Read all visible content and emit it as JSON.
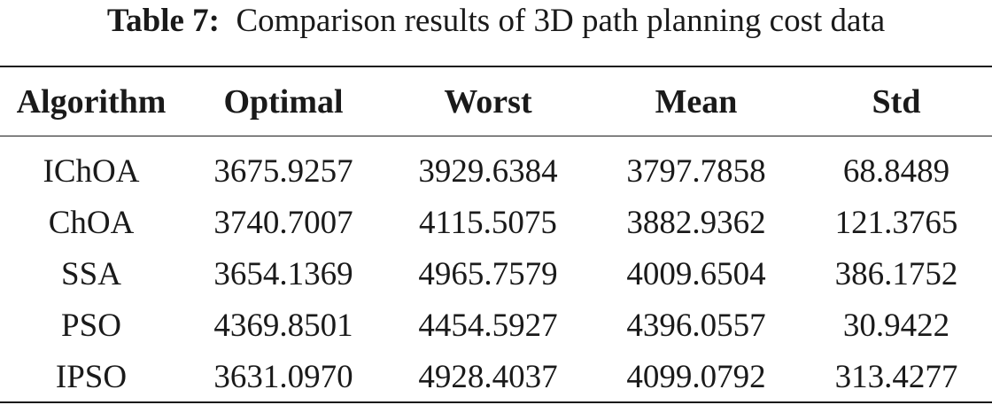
{
  "caption": {
    "label": "Table 7:",
    "text": "Comparison results of 3D path planning cost data"
  },
  "table": {
    "headers": [
      "Algorithm",
      "Optimal",
      "Worst",
      "Mean",
      "Std"
    ],
    "rows": [
      [
        "IChOA",
        "3675.9257",
        "3929.6384",
        "3797.7858",
        "68.8489"
      ],
      [
        "ChOA",
        "3740.7007",
        "4115.5075",
        "3882.9362",
        "121.3765"
      ],
      [
        "SSA",
        "3654.1369",
        "4965.7579",
        "4009.6504",
        "386.1752"
      ],
      [
        "PSO",
        "4369.8501",
        "4454.5927",
        "4396.0557",
        "30.9422"
      ],
      [
        "IPSO",
        "3631.0970",
        "4928.4037",
        "4099.0792",
        "313.4277"
      ]
    ]
  }
}
